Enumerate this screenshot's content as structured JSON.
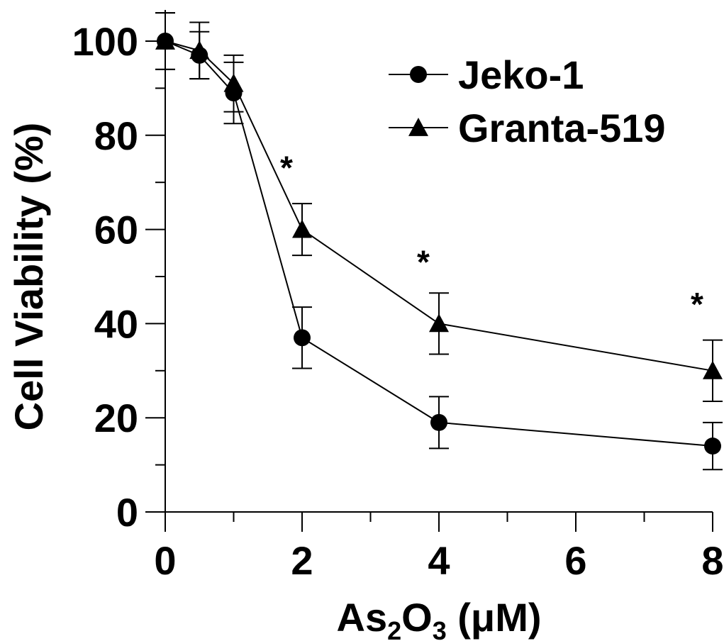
{
  "chart_data": {
    "type": "line",
    "xlabel_parts": [
      "As",
      "2",
      "O",
      "3",
      " (μM)"
    ],
    "ylabel": "Cell Viability (%)",
    "x_ticks": [
      0,
      2,
      4,
      6,
      8
    ],
    "x_tick_labels": [
      "0",
      "2",
      "4",
      "6",
      "8"
    ],
    "y_ticks": [
      0,
      20,
      40,
      60,
      80,
      100
    ],
    "y_tick_labels": [
      "0",
      "20",
      "40",
      "60",
      "80",
      "100"
    ],
    "xlim": [
      0,
      8
    ],
    "ylim": [
      0,
      100
    ],
    "grid": false,
    "legend_position": "top-right",
    "series": [
      {
        "name": "Jeko-1",
        "marker": "circle",
        "x": [
          0,
          0.5,
          1,
          2,
          4,
          8
        ],
        "y": [
          100,
          97,
          89,
          37,
          19,
          14
        ],
        "error": [
          6,
          5,
          6.5,
          6.5,
          5.5,
          5
        ]
      },
      {
        "name": "Granta-519",
        "marker": "triangle",
        "x": [
          0,
          0.5,
          1,
          2,
          4,
          8
        ],
        "y": [
          100,
          98,
          91,
          60,
          40,
          30
        ],
        "error": [
          6,
          6,
          6,
          5.5,
          6.5,
          6.5
        ]
      }
    ],
    "annotations": [
      {
        "text": "*",
        "x": 2,
        "y": 74
      },
      {
        "text": "*",
        "x": 4,
        "y": 54
      },
      {
        "text": "*",
        "x": 8,
        "y": 45
      }
    ]
  }
}
